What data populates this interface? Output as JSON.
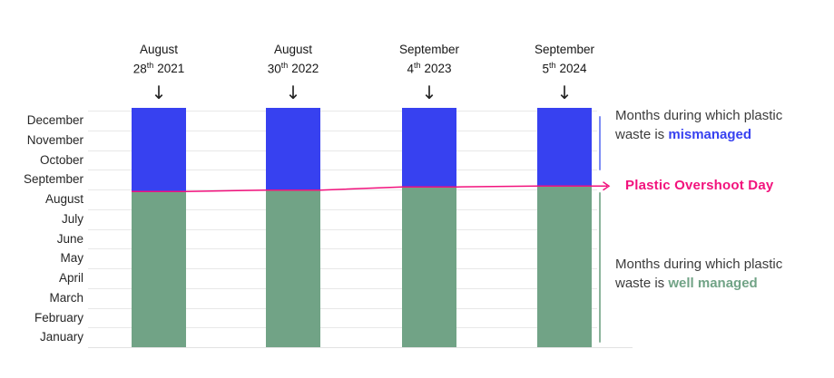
{
  "columns": [
    {
      "month": "August",
      "day": "28",
      "ordinal": "th",
      "year": "2021"
    },
    {
      "month": "August",
      "day": "30",
      "ordinal": "th",
      "year": "2022"
    },
    {
      "month": "September",
      "day": "4",
      "ordinal": "th",
      "year": "2023"
    },
    {
      "month": "September",
      "day": "5",
      "ordinal": "th",
      "year": "2024"
    }
  ],
  "arrow_glyph": "↓",
  "legend": {
    "mismanaged": {
      "text": "Months during which plastic waste is ",
      "highlight": "mismanaged"
    },
    "well_managed": {
      "text": "Months during which plastic waste is ",
      "highlight": "well managed"
    },
    "overshoot_label": "Plastic Overshoot Day"
  },
  "colors": {
    "bar_blue": "#3741f0",
    "bar_green": "#71a386",
    "pink": "#f2127d",
    "bracket_blue": "#7d8df5",
    "bracket_green": "#8cb49c",
    "gridline": "#e8e8e8"
  },
  "chart_data": {
    "type": "bar",
    "stacked": true,
    "orientation": "vertical",
    "categories": [
      "August 28th 2021",
      "August 30th 2022",
      "September 4th 2023",
      "September 5th 2024"
    ],
    "series": [
      {
        "name": "Months during which plastic waste is well managed",
        "color": "#71a386",
        "values": [
          7.9,
          7.97,
          8.13,
          8.17
        ]
      },
      {
        "name": "Months during which plastic waste is mismanaged",
        "color": "#3741f0",
        "values": [
          4.1,
          4.03,
          3.87,
          3.83
        ]
      }
    ],
    "y_tick_labels_top_to_bottom": [
      "December",
      "November",
      "October",
      "September",
      "August",
      "July",
      "June",
      "May",
      "April",
      "March",
      "February",
      "January"
    ],
    "ylim_months": [
      0,
      12
    ],
    "grid": true,
    "legend_position": "right",
    "annotation": {
      "label": "Plastic Overshoot Day",
      "marks": "boundary between well managed (bottom, green) and mismanaged (top, blue) months"
    }
  }
}
